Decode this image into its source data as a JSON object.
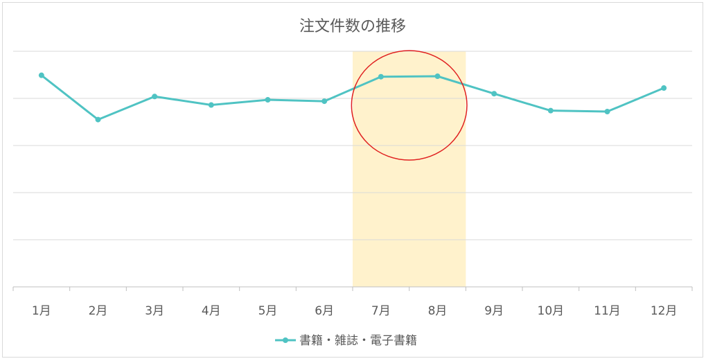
{
  "chart_data": {
    "type": "line",
    "title": "注文件数の推移",
    "xlabel": "",
    "ylabel": "",
    "categories": [
      "1月",
      "2月",
      "3月",
      "4月",
      "5月",
      "6月",
      "7月",
      "8月",
      "9月",
      "10月",
      "11月",
      "12月"
    ],
    "series": [
      {
        "name": "書籍・雑誌・電子書籍",
        "color": "#4fc3c3",
        "values": [
          4.49,
          3.55,
          4.04,
          3.86,
          3.97,
          3.94,
          4.46,
          4.47,
          4.1,
          3.74,
          3.72,
          4.22
        ]
      }
    ],
    "ylim": [
      0,
      5
    ],
    "y_gridlines": 5,
    "y_tick_labels_shown": false,
    "grid": true,
    "legend_position": "bottom",
    "highlight": {
      "categories": [
        "7月",
        "8月"
      ],
      "fill_color": "#fff2cc",
      "circle_color": "#e02020"
    }
  }
}
